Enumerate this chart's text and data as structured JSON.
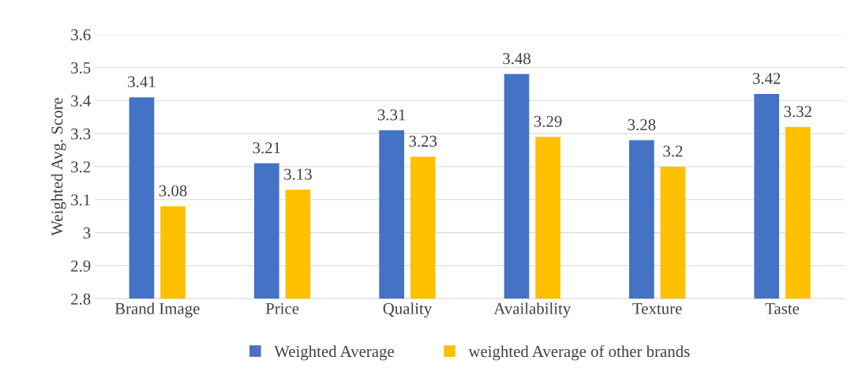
{
  "chart_data": {
    "type": "bar",
    "ylabel": "Weighted Avg. Score",
    "categories": [
      "Brand Image",
      "Price",
      "Quality",
      "Availability",
      "Texture",
      "Taste"
    ],
    "series": [
      {
        "name": "Weighted Average",
        "color": "#4472c4",
        "values": [
          3.41,
          3.21,
          3.31,
          3.48,
          3.28,
          3.42
        ]
      },
      {
        "name": "weighted Average of other brands",
        "color": "#ffc000",
        "values": [
          3.08,
          3.13,
          3.23,
          3.29,
          3.2,
          3.32
        ]
      }
    ],
    "ylim": [
      2.8,
      3.6
    ],
    "yticks": [
      2.8,
      2.9,
      3,
      3.1,
      3.2,
      3.3,
      3.4,
      3.5,
      3.6
    ],
    "grid": "y",
    "legend": "bottom",
    "data_labels": true
  }
}
